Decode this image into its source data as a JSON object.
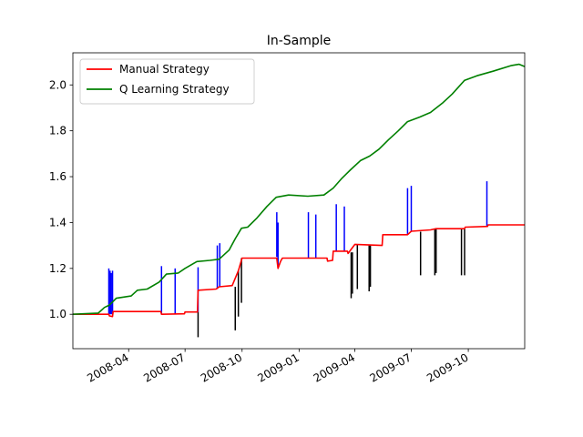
{
  "chart_data": {
    "type": "line",
    "title": "In-Sample",
    "xlabel": "",
    "ylabel": "",
    "x_range": [
      "2008-01-02",
      "2009-12-31"
    ],
    "ylim": [
      0.85,
      2.14
    ],
    "x_ticks": [
      "2008-04-01",
      "2008-07-01",
      "2008-10-01",
      "2009-01-01",
      "2009-04-01",
      "2009-07-01",
      "2009-10-01"
    ],
    "x_tick_labels": [
      "2008-04",
      "2008-07",
      "2008-10",
      "2009-01",
      "2009-04",
      "2009-07",
      "2009-10"
    ],
    "y_ticks": [
      1.0,
      1.2,
      1.4,
      1.6,
      1.8,
      2.0
    ],
    "y_tick_labels": [
      "1.0",
      "1.2",
      "1.4",
      "1.6",
      "1.8",
      "2.0"
    ],
    "grid": false,
    "legend_position": "top-left",
    "series": [
      {
        "name": "Manual Strategy",
        "color": "#ff0000",
        "points": [
          [
            "2008-01-02",
            1.0
          ],
          [
            "2008-02-29",
            1.0
          ],
          [
            "2008-03-01",
            0.993
          ],
          [
            "2008-03-06",
            0.99
          ],
          [
            "2008-03-07",
            1.012
          ],
          [
            "2008-05-23",
            1.012
          ],
          [
            "2008-05-24",
            1.0
          ],
          [
            "2008-06-30",
            1.002
          ],
          [
            "2008-07-01",
            1.01
          ],
          [
            "2008-07-21",
            1.01
          ],
          [
            "2008-07-22",
            1.105
          ],
          [
            "2008-08-20",
            1.11
          ],
          [
            "2008-08-25",
            1.12
          ],
          [
            "2008-09-15",
            1.125
          ],
          [
            "2008-09-25",
            1.19
          ],
          [
            "2008-10-01",
            1.245
          ],
          [
            "2008-11-26",
            1.245
          ],
          [
            "2008-11-28",
            1.2
          ],
          [
            "2008-12-02",
            1.23
          ],
          [
            "2008-12-05",
            1.245
          ],
          [
            "2009-02-15",
            1.245
          ],
          [
            "2009-02-16",
            1.232
          ],
          [
            "2009-02-24",
            1.235
          ],
          [
            "2009-02-25",
            1.275
          ],
          [
            "2009-03-20",
            1.275
          ],
          [
            "2009-03-21",
            1.265
          ],
          [
            "2009-04-01",
            1.305
          ],
          [
            "2009-05-15",
            1.3
          ],
          [
            "2009-05-16",
            1.347
          ],
          [
            "2009-06-25",
            1.347
          ],
          [
            "2009-07-01",
            1.362
          ],
          [
            "2009-08-01",
            1.368
          ],
          [
            "2009-08-10",
            1.373
          ],
          [
            "2009-09-25",
            1.373
          ],
          [
            "2009-09-26",
            1.38
          ],
          [
            "2009-11-01",
            1.383
          ],
          [
            "2009-11-02",
            1.39
          ],
          [
            "2009-12-31",
            1.39
          ]
        ]
      },
      {
        "name": "Q Learning Strategy",
        "color": "#008000",
        "points": [
          [
            "2008-01-02",
            1.0
          ],
          [
            "2008-02-12",
            1.005
          ],
          [
            "2008-02-22",
            1.03
          ],
          [
            "2008-03-01",
            1.04
          ],
          [
            "2008-03-12",
            1.07
          ],
          [
            "2008-04-05",
            1.08
          ],
          [
            "2008-04-15",
            1.105
          ],
          [
            "2008-05-01",
            1.11
          ],
          [
            "2008-05-20",
            1.14
          ],
          [
            "2008-06-01",
            1.175
          ],
          [
            "2008-06-20",
            1.18
          ],
          [
            "2008-07-01",
            1.2
          ],
          [
            "2008-07-20",
            1.23
          ],
          [
            "2008-08-10",
            1.235
          ],
          [
            "2008-08-25",
            1.24
          ],
          [
            "2008-09-10",
            1.28
          ],
          [
            "2008-09-20",
            1.33
          ],
          [
            "2008-09-30",
            1.375
          ],
          [
            "2008-10-10",
            1.38
          ],
          [
            "2008-10-25",
            1.42
          ],
          [
            "2008-11-10",
            1.47
          ],
          [
            "2008-11-25",
            1.51
          ],
          [
            "2008-12-15",
            1.52
          ],
          [
            "2009-01-15",
            1.515
          ],
          [
            "2009-02-10",
            1.52
          ],
          [
            "2009-02-25",
            1.55
          ],
          [
            "2009-03-10",
            1.59
          ],
          [
            "2009-03-25",
            1.63
          ],
          [
            "2009-04-10",
            1.67
          ],
          [
            "2009-04-25",
            1.69
          ],
          [
            "2009-05-10",
            1.72
          ],
          [
            "2009-05-25",
            1.76
          ],
          [
            "2009-06-10",
            1.8
          ],
          [
            "2009-06-25",
            1.84
          ],
          [
            "2009-07-15",
            1.86
          ],
          [
            "2009-08-01",
            1.88
          ],
          [
            "2009-08-20",
            1.92
          ],
          [
            "2009-09-05",
            1.96
          ],
          [
            "2009-09-25",
            2.02
          ],
          [
            "2009-10-15",
            2.04
          ],
          [
            "2009-11-10",
            2.06
          ],
          [
            "2009-12-10",
            2.085
          ],
          [
            "2009-12-22",
            2.09
          ],
          [
            "2009-12-31",
            2.08
          ]
        ]
      }
    ],
    "entry_markers": {
      "color_long": "#0000ff",
      "color_short": "#000000",
      "long": [
        [
          "2008-02-29",
          1.0,
          1.2
        ],
        [
          "2008-03-02",
          1.0,
          1.19
        ],
        [
          "2008-03-04",
          1.0,
          1.18
        ],
        [
          "2008-03-06",
          1.0,
          1.19
        ],
        [
          "2008-05-24",
          1.0,
          1.21
        ],
        [
          "2008-06-15",
          1.0,
          1.2
        ],
        [
          "2008-07-22",
          1.01,
          1.205
        ],
        [
          "2008-08-22",
          1.11,
          1.3
        ],
        [
          "2008-08-26",
          1.12,
          1.31
        ],
        [
          "2008-11-26",
          1.25,
          1.445
        ],
        [
          "2008-11-28",
          1.2,
          1.4
        ],
        [
          "2009-01-16",
          1.245,
          1.445
        ],
        [
          "2009-01-28",
          1.245,
          1.435
        ],
        [
          "2009-03-02",
          1.275,
          1.48
        ],
        [
          "2009-03-15",
          1.275,
          1.47
        ],
        [
          "2009-06-25",
          1.35,
          1.55
        ],
        [
          "2009-07-01",
          1.36,
          1.56
        ],
        [
          "2009-10-31",
          1.38,
          1.58
        ]
      ],
      "short": [
        [
          "2008-07-22",
          0.9,
          1.01
        ],
        [
          "2008-09-20",
          0.93,
          1.12
        ],
        [
          "2008-09-25",
          0.99,
          1.19
        ],
        [
          "2008-09-30",
          1.05,
          1.245
        ],
        [
          "2009-03-26",
          1.07,
          1.27
        ],
        [
          "2009-03-28",
          1.09,
          1.27
        ],
        [
          "2009-04-05",
          1.11,
          1.305
        ],
        [
          "2009-04-24",
          1.1,
          1.3
        ],
        [
          "2009-04-26",
          1.12,
          1.3
        ],
        [
          "2009-07-16",
          1.17,
          1.36
        ],
        [
          "2009-08-08",
          1.17,
          1.37
        ],
        [
          "2009-08-10",
          1.18,
          1.37
        ],
        [
          "2009-09-20",
          1.17,
          1.373
        ],
        [
          "2009-09-25",
          1.17,
          1.373
        ]
      ]
    }
  }
}
